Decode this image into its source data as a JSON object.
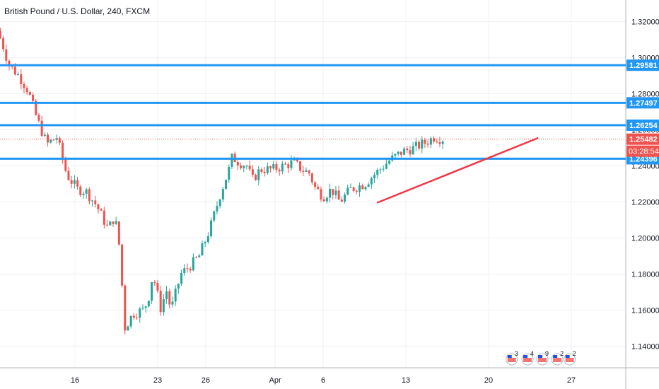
{
  "header": {
    "title": "British Pound / U.S. Dollar, 240, FXCM"
  },
  "colors": {
    "up": "#26a69a",
    "down": "#ef5350",
    "level_line": "#2196f3",
    "trendline": "#f23645",
    "grid": "#eef0f4",
    "axis_text": "#131722",
    "price_tag": "#ef5350",
    "timer_tag": "#ef5350"
  },
  "price_axis": {
    "ticks": [
      "1.32000",
      "1.30000",
      "1.28000",
      "1.26000",
      "1.24000",
      "1.22000",
      "1.20000",
      "1.18000",
      "1.16000",
      "1.14000"
    ]
  },
  "time_axis": {
    "ticks": [
      "16",
      "23",
      "26",
      "Apr",
      "6",
      "13",
      "20",
      "27"
    ]
  },
  "chart_data": {
    "type": "candlestick",
    "symbol": "GBPUSD",
    "interval": "240",
    "source": "FXCM",
    "ylim": [
      1.128,
      1.332
    ],
    "levels": [
      {
        "value": 1.29581,
        "label": "1.29581"
      },
      {
        "value": 1.27497,
        "label": "1.27497"
      },
      {
        "value": 1.26254,
        "label": "1.26254"
      },
      {
        "value": 1.24396,
        "label": "1.24396"
      }
    ],
    "current_price": {
      "value": 1.25482,
      "label": "1.25482",
      "countdown": "03:28:54"
    },
    "trendline": {
      "from": [
        3.65,
        1.2195
      ],
      "to": [
        5.6,
        1.2555
      ]
    },
    "event_markers": [
      {
        "count": "3",
        "x": 5.28
      },
      {
        "count": "4",
        "x": 5.47
      },
      {
        "count": "9",
        "x": 5.65
      },
      {
        "count": "2",
        "x": 5.83
      },
      {
        "count": "2",
        "x": 5.98
      }
    ],
    "x_ticks": [
      {
        "label": "16",
        "x": 0
      },
      {
        "label": "23",
        "x": 1
      },
      {
        "label": "26",
        "x": 1.58
      },
      {
        "label": "Apr",
        "x": 2.42
      },
      {
        "label": "6",
        "x": 3
      },
      {
        "label": "13",
        "x": 4
      },
      {
        "label": "20",
        "x": 5
      },
      {
        "label": "27",
        "x": 6
      }
    ],
    "path_points": [
      [
        -0.92,
        1.315
      ],
      [
        -0.86,
        1.308
      ],
      [
        -0.78,
        1.296
      ],
      [
        -0.66,
        1.29
      ],
      [
        -0.55,
        1.282
      ],
      [
        -0.44,
        1.266
      ],
      [
        -0.32,
        1.252
      ],
      [
        -0.2,
        1.256
      ],
      [
        -0.08,
        1.235
      ],
      [
        0.05,
        1.227
      ],
      [
        0.15,
        1.226
      ],
      [
        0.28,
        1.218
      ],
      [
        0.42,
        1.205
      ],
      [
        0.5,
        1.212
      ],
      [
        0.56,
        1.194
      ],
      [
        0.62,
        1.15
      ],
      [
        0.72,
        1.158
      ],
      [
        0.84,
        1.16
      ],
      [
        0.9,
        1.165
      ],
      [
        0.96,
        1.18
      ],
      [
        1.06,
        1.16
      ],
      [
        1.12,
        1.172
      ],
      [
        1.18,
        1.16
      ],
      [
        1.3,
        1.18
      ],
      [
        1.42,
        1.185
      ],
      [
        1.52,
        1.19
      ],
      [
        1.65,
        1.205
      ],
      [
        1.78,
        1.225
      ],
      [
        1.88,
        1.238
      ],
      [
        1.92,
        1.245
      ],
      [
        2.0,
        1.242
      ],
      [
        2.1,
        1.24
      ],
      [
        2.16,
        1.232
      ],
      [
        2.26,
        1.238
      ],
      [
        2.4,
        1.238
      ],
      [
        2.55,
        1.24
      ],
      [
        2.66,
        1.242
      ],
      [
        2.76,
        1.238
      ],
      [
        2.85,
        1.236
      ],
      [
        2.92,
        1.228
      ],
      [
        3.02,
        1.223
      ],
      [
        3.12,
        1.227
      ],
      [
        3.22,
        1.22
      ],
      [
        3.35,
        1.227
      ],
      [
        3.52,
        1.23
      ],
      [
        3.68,
        1.237
      ],
      [
        3.82,
        1.243
      ],
      [
        3.98,
        1.248
      ],
      [
        4.12,
        1.25
      ],
      [
        4.26,
        1.253
      ],
      [
        4.36,
        1.256
      ],
      [
        4.44,
        1.255
      ]
    ]
  }
}
